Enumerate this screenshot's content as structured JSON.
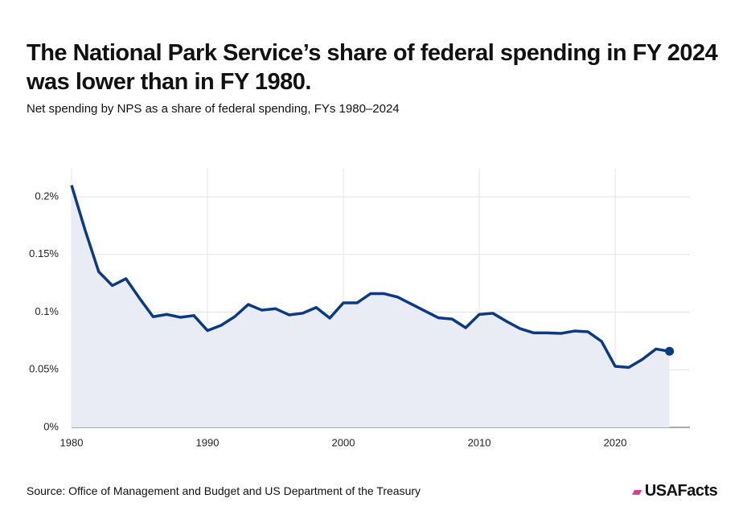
{
  "chart_data": {
    "type": "line",
    "title": "The National Park Service’s share of federal spending in FY 2024 was lower than in FY 1980.",
    "subtitle": "Net spending by NPS as a share of federal spending, FYs 1980–2024",
    "source": "Source: Office of Management and Budget and US Department of the Treasury",
    "logo": "USAFacts",
    "x": [
      1980,
      1981,
      1982,
      1983,
      1984,
      1985,
      1986,
      1987,
      1988,
      1989,
      1990,
      1991,
      1992,
      1993,
      1994,
      1995,
      1996,
      1997,
      1998,
      1999,
      2000,
      2001,
      2002,
      2003,
      2004,
      2005,
      2006,
      2007,
      2008,
      2009,
      2010,
      2011,
      2012,
      2013,
      2014,
      2015,
      2016,
      2017,
      2018,
      2019,
      2020,
      2021,
      2022,
      2023,
      2024
    ],
    "series": [
      {
        "color": "#0b3a82",
        "fill": "#e9ecf5",
        "values": [
          0.21,
          0.171,
          0.135,
          0.123,
          0.129,
          0.112,
          0.096,
          0.098,
          0.0955,
          0.097,
          0.084,
          0.0885,
          0.096,
          0.1066,
          0.1017,
          0.103,
          0.0976,
          0.099,
          0.104,
          0.0948,
          0.108,
          0.108,
          0.116,
          0.116,
          0.113,
          0.107,
          0.101,
          0.095,
          0.094,
          0.0864,
          0.098,
          0.099,
          0.092,
          0.0857,
          0.082,
          0.082,
          0.0815,
          0.0836,
          0.0829,
          0.0746,
          0.053,
          0.052,
          0.059,
          0.068,
          0.066
        ]
      }
    ],
    "xlim": [
      1980,
      2025.5
    ],
    "xticks": [
      1980,
      1990,
      2000,
      2010,
      2020
    ],
    "ylim": [
      0,
      0.2244
    ],
    "yticks": [
      {
        "value": 0,
        "label": "0%"
      },
      {
        "value": 0.05,
        "label": "0.05%"
      },
      {
        "value": 0.1,
        "label": "0.1%"
      },
      {
        "value": 0.15,
        "label": "0.15%"
      },
      {
        "value": 0.2,
        "label": "0.2%"
      }
    ],
    "grid": true
  }
}
